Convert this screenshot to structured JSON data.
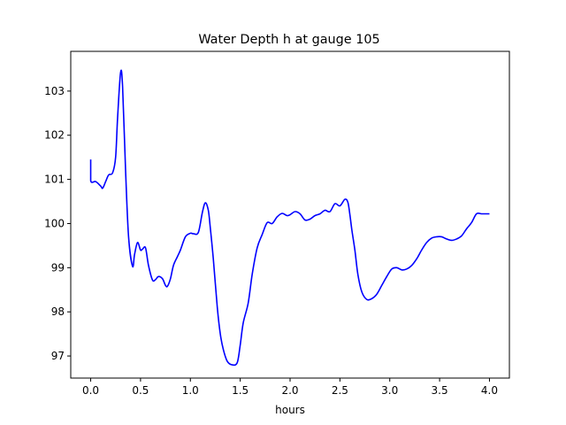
{
  "chart_data": {
    "type": "line",
    "title": "Water Depth h at gauge 105",
    "xlabel": "hours",
    "ylabel": "",
    "xlim": [
      -0.2,
      4.2
    ],
    "ylim": [
      96.5,
      103.9
    ],
    "x_ticks": [
      "0.0",
      "0.5",
      "1.0",
      "1.5",
      "2.0",
      "2.5",
      "3.0",
      "3.5",
      "4.0"
    ],
    "x_tick_values": [
      0,
      0.5,
      1.0,
      1.5,
      2.0,
      2.5,
      3.0,
      3.5,
      4.0
    ],
    "y_ticks": [
      "97",
      "98",
      "99",
      "100",
      "101",
      "102",
      "103"
    ],
    "y_tick_values": [
      97,
      98,
      99,
      100,
      101,
      102,
      103
    ],
    "grid": false,
    "line_color": "#0000ff",
    "series": [
      {
        "x": [
          0.0,
          0.0,
          0.05,
          0.1,
          0.12,
          0.15,
          0.18,
          0.22,
          0.25,
          0.27,
          0.3,
          0.32,
          0.35,
          0.38,
          0.42,
          0.44,
          0.47,
          0.5,
          0.52,
          0.55,
          0.58,
          0.62,
          0.65,
          0.68,
          0.72,
          0.75,
          0.77,
          0.8,
          0.83,
          0.87,
          0.9,
          0.95,
          1.0,
          1.03,
          1.08,
          1.12,
          1.15,
          1.18,
          1.2,
          1.23,
          1.27,
          1.3,
          1.33,
          1.37,
          1.42,
          1.47,
          1.5,
          1.53,
          1.58,
          1.62,
          1.67,
          1.72,
          1.77,
          1.82,
          1.87,
          1.92,
          1.97,
          2.0,
          2.05,
          2.1,
          2.15,
          2.2,
          2.25,
          2.3,
          2.35,
          2.4,
          2.45,
          2.5,
          2.55,
          2.58,
          2.6,
          2.62,
          2.65,
          2.68,
          2.72,
          2.77,
          2.82,
          2.87,
          2.92,
          2.97,
          3.02,
          3.07,
          3.12,
          3.17,
          3.22,
          3.27,
          3.32,
          3.37,
          3.42,
          3.47,
          3.52,
          3.57,
          3.62,
          3.67,
          3.72,
          3.77,
          3.82,
          3.87,
          3.92,
          3.97,
          4.0
        ],
        "y": [
          101.45,
          100.97,
          100.95,
          100.85,
          100.8,
          100.95,
          101.1,
          101.15,
          101.5,
          102.4,
          103.42,
          103.1,
          101.2,
          99.7,
          99.03,
          99.3,
          99.57,
          99.4,
          99.42,
          99.45,
          99.05,
          98.72,
          98.73,
          98.8,
          98.75,
          98.6,
          98.58,
          98.75,
          99.05,
          99.25,
          99.4,
          99.7,
          99.78,
          99.77,
          99.8,
          100.25,
          100.47,
          100.3,
          99.9,
          99.2,
          98.1,
          97.5,
          97.15,
          96.88,
          96.8,
          96.85,
          97.25,
          97.75,
          98.2,
          98.85,
          99.45,
          99.75,
          100.02,
          100.0,
          100.15,
          100.23,
          100.18,
          100.2,
          100.27,
          100.22,
          100.08,
          100.1,
          100.18,
          100.22,
          100.3,
          100.27,
          100.45,
          100.4,
          100.55,
          100.48,
          100.2,
          99.85,
          99.4,
          98.85,
          98.45,
          98.28,
          98.3,
          98.4,
          98.6,
          98.8,
          98.97,
          99.0,
          98.95,
          98.97,
          99.05,
          99.2,
          99.4,
          99.57,
          99.67,
          99.7,
          99.7,
          99.65,
          99.62,
          99.65,
          99.72,
          99.88,
          100.02,
          100.22,
          100.22,
          100.22,
          100.22
        ]
      }
    ]
  }
}
